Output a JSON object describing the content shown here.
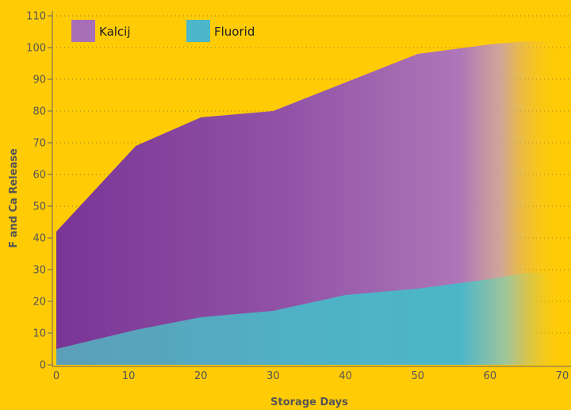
{
  "chart_data": {
    "type": "area",
    "xlabel": "Storage Days",
    "ylabel": "F and Ca Release",
    "xlim": [
      0,
      70
    ],
    "ylim": [
      0,
      110
    ],
    "x_ticks": [
      0,
      10,
      20,
      30,
      40,
      50,
      60,
      70
    ],
    "y_ticks": [
      0,
      10,
      20,
      30,
      40,
      50,
      60,
      70,
      80,
      90,
      100,
      110
    ],
    "grid": "horizontal dotted",
    "legend_position": "top-left",
    "fade_out_right": true,
    "series": [
      {
        "name": "Kalcij",
        "color": "#8E4A9E",
        "x": [
          0,
          11,
          20,
          30,
          40,
          50,
          60,
          65
        ],
        "y": [
          42,
          69,
          78,
          80,
          89,
          98,
          101,
          102
        ]
      },
      {
        "name": "Fluorid",
        "color": "#4BB3C8",
        "x": [
          0,
          11,
          20,
          30,
          40,
          50,
          60,
          65
        ],
        "y": [
          5,
          11,
          15,
          17,
          22,
          24,
          27,
          29
        ]
      }
    ]
  }
}
